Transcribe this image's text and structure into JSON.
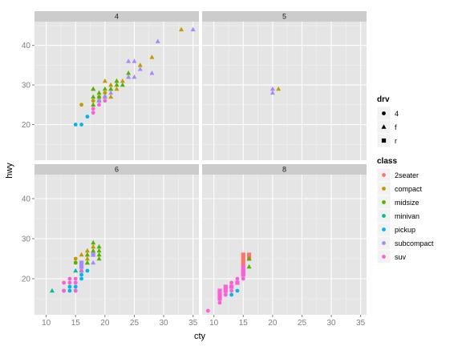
{
  "chart_data": {
    "type": "scatter",
    "title": "",
    "xlabel": "cty",
    "ylabel": "hwy",
    "xlim": [
      8,
      36
    ],
    "ylim": [
      11,
      46
    ],
    "x_ticks": [
      10,
      15,
      20,
      25,
      30,
      35
    ],
    "y_ticks": [
      20,
      30,
      40
    ],
    "grid": true,
    "facets": [
      "4",
      "5",
      "6",
      "8"
    ],
    "facet_layout": "2x2",
    "legend": {
      "placement": "right",
      "shape": {
        "title": "drv",
        "items": [
          {
            "label": "4",
            "symbol": "circle"
          },
          {
            "label": "f",
            "symbol": "triangle"
          },
          {
            "label": "r",
            "symbol": "square"
          }
        ]
      },
      "color": {
        "title": "class",
        "items": [
          {
            "label": "2seater",
            "color": "#F8766D"
          },
          {
            "label": "compact",
            "color": "#C49A00"
          },
          {
            "label": "midsize",
            "color": "#53B400"
          },
          {
            "label": "minivan",
            "color": "#00C094"
          },
          {
            "label": "pickup",
            "color": "#00B6EB"
          },
          {
            "label": "subcompact",
            "color": "#A58AFF"
          },
          {
            "label": "suv",
            "color": "#FB61D7"
          }
        ]
      }
    },
    "points": [
      {
        "facet": "4",
        "x": 18,
        "y": 29,
        "class": "compact",
        "drv": "f"
      },
      {
        "facet": "4",
        "x": 21,
        "y": 29,
        "class": "compact",
        "drv": "f"
      },
      {
        "facet": "4",
        "x": 20,
        "y": 31,
        "class": "compact",
        "drv": "f"
      },
      {
        "facet": "4",
        "x": 21,
        "y": 30,
        "class": "compact",
        "drv": "f"
      },
      {
        "facet": "4",
        "x": 18,
        "y": 26,
        "class": "compact",
        "drv": "4"
      },
      {
        "facet": "4",
        "x": 16,
        "y": 25,
        "class": "compact",
        "drv": "4"
      },
      {
        "facet": "4",
        "x": 20,
        "y": 28,
        "class": "compact",
        "drv": "4"
      },
      {
        "facet": "4",
        "x": 19,
        "y": 27,
        "class": "compact",
        "drv": "4"
      },
      {
        "facet": "4",
        "x": 21,
        "y": 27,
        "class": "compact",
        "drv": "f"
      },
      {
        "facet": "4",
        "x": 22,
        "y": 29,
        "class": "compact",
        "drv": "f"
      },
      {
        "facet": "4",
        "x": 23,
        "y": 31,
        "class": "compact",
        "drv": "f"
      },
      {
        "facet": "4",
        "x": 24,
        "y": 32,
        "class": "compact",
        "drv": "f"
      },
      {
        "facet": "4",
        "x": 26,
        "y": 35,
        "class": "compact",
        "drv": "f"
      },
      {
        "facet": "4",
        "x": 28,
        "y": 37,
        "class": "compact",
        "drv": "f"
      },
      {
        "facet": "4",
        "x": 33,
        "y": 44,
        "class": "compact",
        "drv": "f"
      },
      {
        "facet": "4",
        "x": 19,
        "y": 26,
        "class": "compact",
        "drv": "4"
      },
      {
        "facet": "4",
        "x": 22,
        "y": 31,
        "class": "compact",
        "drv": "f"
      },
      {
        "facet": "4",
        "x": 18,
        "y": 27,
        "class": "midsize",
        "drv": "f"
      },
      {
        "facet": "4",
        "x": 19,
        "y": 27,
        "class": "midsize",
        "drv": "f"
      },
      {
        "facet": "4",
        "x": 19,
        "y": 26,
        "class": "midsize",
        "drv": "f"
      },
      {
        "facet": "4",
        "x": 20,
        "y": 29,
        "class": "midsize",
        "drv": "f"
      },
      {
        "facet": "4",
        "x": 21,
        "y": 29,
        "class": "midsize",
        "drv": "f"
      },
      {
        "facet": "4",
        "x": 22,
        "y": 31,
        "class": "midsize",
        "drv": "f"
      },
      {
        "facet": "4",
        "x": 23,
        "y": 30,
        "class": "midsize",
        "drv": "f"
      },
      {
        "facet": "4",
        "x": 18,
        "y": 29,
        "class": "midsize",
        "drv": "f"
      },
      {
        "facet": "4",
        "x": 19,
        "y": 28,
        "class": "midsize",
        "drv": "f"
      },
      {
        "facet": "4",
        "x": 24,
        "y": 33,
        "class": "midsize",
        "drv": "f"
      },
      {
        "facet": "4",
        "x": 20,
        "y": 27,
        "class": "midsize",
        "drv": "f"
      },
      {
        "facet": "4",
        "x": 18,
        "y": 25,
        "class": "midsize",
        "drv": "f"
      },
      {
        "facet": "4",
        "x": 22,
        "y": 30,
        "class": "midsize",
        "drv": "f"
      },
      {
        "facet": "4",
        "x": 15,
        "y": 20,
        "class": "pickup",
        "drv": "4"
      },
      {
        "facet": "4",
        "x": 16,
        "y": 20,
        "class": "pickup",
        "drv": "4"
      },
      {
        "facet": "4",
        "x": 17,
        "y": 22,
        "class": "pickup",
        "drv": "4"
      },
      {
        "facet": "4",
        "x": 18,
        "y": 24,
        "class": "suv",
        "drv": "4"
      },
      {
        "facet": "4",
        "x": 18,
        "y": 23,
        "class": "suv",
        "drv": "4"
      },
      {
        "facet": "4",
        "x": 19,
        "y": 25,
        "class": "suv",
        "drv": "4"
      },
      {
        "facet": "4",
        "x": 20,
        "y": 26,
        "class": "suv",
        "drv": "4"
      },
      {
        "facet": "4",
        "x": 25,
        "y": 36,
        "class": "subcompact",
        "drv": "f"
      },
      {
        "facet": "4",
        "x": 24,
        "y": 36,
        "class": "subcompact",
        "drv": "f"
      },
      {
        "facet": "4",
        "x": 29,
        "y": 41,
        "class": "subcompact",
        "drv": "f"
      },
      {
        "facet": "4",
        "x": 35,
        "y": 44,
        "class": "subcompact",
        "drv": "f"
      },
      {
        "facet": "4",
        "x": 26,
        "y": 34,
        "class": "subcompact",
        "drv": "f"
      },
      {
        "facet": "4",
        "x": 28,
        "y": 33,
        "class": "subcompact",
        "drv": "f"
      },
      {
        "facet": "4",
        "x": 25,
        "y": 32,
        "class": "subcompact",
        "drv": "f"
      },
      {
        "facet": "4",
        "x": 24,
        "y": 32,
        "class": "subcompact",
        "drv": "f"
      },
      {
        "facet": "4",
        "x": 21,
        "y": 28,
        "class": "subcompact",
        "drv": "f"
      },
      {
        "facet": "4",
        "x": 19,
        "y": 26,
        "class": "subcompact",
        "drv": "4"
      },
      {
        "facet": "4",
        "x": 20,
        "y": 27,
        "class": "subcompact",
        "drv": "4"
      },
      {
        "facet": "5",
        "x": 21,
        "y": 29,
        "class": "compact",
        "drv": "f"
      },
      {
        "facet": "5",
        "x": 20,
        "y": 28,
        "class": "subcompact",
        "drv": "f"
      },
      {
        "facet": "5",
        "x": 20,
        "y": 29,
        "class": "subcompact",
        "drv": "f"
      },
      {
        "facet": "6",
        "x": 11,
        "y": 17,
        "class": "minivan",
        "drv": "f"
      },
      {
        "facet": "6",
        "x": 15,
        "y": 22,
        "class": "minivan",
        "drv": "f"
      },
      {
        "facet": "6",
        "x": 16,
        "y": 23,
        "class": "minivan",
        "drv": "f"
      },
      {
        "facet": "6",
        "x": 16,
        "y": 22,
        "class": "minivan",
        "drv": "f"
      },
      {
        "facet": "6",
        "x": 17,
        "y": 24,
        "class": "minivan",
        "drv": "f"
      },
      {
        "facet": "6",
        "x": 15,
        "y": 25,
        "class": "compact",
        "drv": "4"
      },
      {
        "facet": "6",
        "x": 15,
        "y": 24,
        "class": "compact",
        "drv": "4"
      },
      {
        "facet": "6",
        "x": 17,
        "y": 26,
        "class": "compact",
        "drv": "f"
      },
      {
        "facet": "6",
        "x": 16,
        "y": 26,
        "class": "compact",
        "drv": "f"
      },
      {
        "facet": "6",
        "x": 17,
        "y": 25,
        "class": "compact",
        "drv": "f"
      },
      {
        "facet": "6",
        "x": 17,
        "y": 27,
        "class": "compact",
        "drv": "f"
      },
      {
        "facet": "6",
        "x": 18,
        "y": 28,
        "class": "compact",
        "drv": "f"
      },
      {
        "facet": "6",
        "x": 18,
        "y": 26,
        "class": "midsize",
        "drv": "f"
      },
      {
        "facet": "6",
        "x": 18,
        "y": 29,
        "class": "midsize",
        "drv": "f"
      },
      {
        "facet": "6",
        "x": 19,
        "y": 28,
        "class": "midsize",
        "drv": "f"
      },
      {
        "facet": "6",
        "x": 19,
        "y": 27,
        "class": "midsize",
        "drv": "f"
      },
      {
        "facet": "6",
        "x": 19,
        "y": 26,
        "class": "midsize",
        "drv": "f"
      },
      {
        "facet": "6",
        "x": 17,
        "y": 26,
        "class": "midsize",
        "drv": "f"
      },
      {
        "facet": "6",
        "x": 18,
        "y": 27,
        "class": "midsize",
        "drv": "f"
      },
      {
        "facet": "6",
        "x": 19,
        "y": 25,
        "class": "midsize",
        "drv": "f"
      },
      {
        "facet": "6",
        "x": 15,
        "y": 24,
        "class": "midsize",
        "drv": "4"
      },
      {
        "facet": "6",
        "x": 17,
        "y": 24,
        "class": "midsize",
        "drv": "f"
      },
      {
        "facet": "6",
        "x": 13,
        "y": 17,
        "class": "pickup",
        "drv": "4"
      },
      {
        "facet": "6",
        "x": 14,
        "y": 17,
        "class": "pickup",
        "drv": "4"
      },
      {
        "facet": "6",
        "x": 14,
        "y": 18,
        "class": "pickup",
        "drv": "4"
      },
      {
        "facet": "6",
        "x": 15,
        "y": 17,
        "class": "pickup",
        "drv": "4"
      },
      {
        "facet": "6",
        "x": 15,
        "y": 18,
        "class": "pickup",
        "drv": "4"
      },
      {
        "facet": "6",
        "x": 15,
        "y": 19,
        "class": "pickup",
        "drv": "4"
      },
      {
        "facet": "6",
        "x": 16,
        "y": 20,
        "class": "pickup",
        "drv": "4"
      },
      {
        "facet": "6",
        "x": 16,
        "y": 21,
        "class": "pickup",
        "drv": "4"
      },
      {
        "facet": "6",
        "x": 17,
        "y": 22,
        "class": "pickup",
        "drv": "4"
      },
      {
        "facet": "6",
        "x": 13,
        "y": 19,
        "class": "suv",
        "drv": "4"
      },
      {
        "facet": "6",
        "x": 13,
        "y": 17,
        "class": "suv",
        "drv": "4"
      },
      {
        "facet": "6",
        "x": 14,
        "y": 20,
        "class": "suv",
        "drv": "4"
      },
      {
        "facet": "6",
        "x": 14,
        "y": 19,
        "class": "suv",
        "drv": "4"
      },
      {
        "facet": "6",
        "x": 15,
        "y": 19,
        "class": "suv",
        "drv": "4"
      },
      {
        "facet": "6",
        "x": 15,
        "y": 20,
        "class": "suv",
        "drv": "4"
      },
      {
        "facet": "6",
        "x": 15,
        "y": 17,
        "class": "suv",
        "drv": "4"
      },
      {
        "facet": "6",
        "x": 16,
        "y": 22,
        "class": "suv",
        "drv": "4"
      },
      {
        "facet": "6",
        "x": 16,
        "y": 24,
        "class": "subcompact",
        "drv": "r"
      },
      {
        "facet": "6",
        "x": 16,
        "y": 23,
        "class": "subcompact",
        "drv": "r"
      },
      {
        "facet": "6",
        "x": 18,
        "y": 26,
        "class": "subcompact",
        "drv": "r"
      },
      {
        "facet": "6",
        "x": 18,
        "y": 24,
        "class": "subcompact",
        "drv": "f"
      },
      {
        "facet": "8",
        "x": 15,
        "y": 26,
        "class": "2seater",
        "drv": "r"
      },
      {
        "facet": "8",
        "x": 16,
        "y": 26,
        "class": "2seater",
        "drv": "r"
      },
      {
        "facet": "8",
        "x": 15,
        "y": 25,
        "class": "2seater",
        "drv": "r"
      },
      {
        "facet": "8",
        "x": 15,
        "y": 24,
        "class": "2seater",
        "drv": "r"
      },
      {
        "facet": "8",
        "x": 16,
        "y": 25,
        "class": "2seater",
        "drv": "r"
      },
      {
        "facet": "8",
        "x": 16,
        "y": 23,
        "class": "midsize",
        "drv": "f"
      },
      {
        "facet": "8",
        "x": 16,
        "y": 25,
        "class": "midsize",
        "drv": "f"
      },
      {
        "facet": "8",
        "x": 12,
        "y": 16,
        "class": "pickup",
        "drv": "4"
      },
      {
        "facet": "8",
        "x": 13,
        "y": 16,
        "class": "pickup",
        "drv": "4"
      },
      {
        "facet": "8",
        "x": 14,
        "y": 17,
        "class": "pickup",
        "drv": "4"
      },
      {
        "facet": "8",
        "x": 11,
        "y": 15,
        "class": "pickup",
        "drv": "4"
      },
      {
        "facet": "8",
        "x": 15,
        "y": 21,
        "class": "subcompact",
        "drv": "r"
      },
      {
        "facet": "8",
        "x": 15,
        "y": 22,
        "class": "subcompact",
        "drv": "r"
      },
      {
        "facet": "8",
        "x": 9,
        "y": 12,
        "class": "suv",
        "drv": "4"
      },
      {
        "facet": "8",
        "x": 11,
        "y": 14,
        "class": "suv",
        "drv": "4"
      },
      {
        "facet": "8",
        "x": 11,
        "y": 15,
        "class": "suv",
        "drv": "4"
      },
      {
        "facet": "8",
        "x": 11,
        "y": 16,
        "class": "suv",
        "drv": "4"
      },
      {
        "facet": "8",
        "x": 11,
        "y": 17,
        "class": "suv",
        "drv": "4"
      },
      {
        "facet": "8",
        "x": 12,
        "y": 16,
        "class": "suv",
        "drv": "4"
      },
      {
        "facet": "8",
        "x": 12,
        "y": 17,
        "class": "suv",
        "drv": "4"
      },
      {
        "facet": "8",
        "x": 12,
        "y": 18,
        "class": "suv",
        "drv": "4"
      },
      {
        "facet": "8",
        "x": 13,
        "y": 17,
        "class": "suv",
        "drv": "4"
      },
      {
        "facet": "8",
        "x": 13,
        "y": 18,
        "class": "suv",
        "drv": "4"
      },
      {
        "facet": "8",
        "x": 13,
        "y": 19,
        "class": "suv",
        "drv": "4"
      },
      {
        "facet": "8",
        "x": 14,
        "y": 19,
        "class": "suv",
        "drv": "4"
      },
      {
        "facet": "8",
        "x": 14,
        "y": 20,
        "class": "suv",
        "drv": "4"
      },
      {
        "facet": "8",
        "x": 15,
        "y": 20,
        "class": "suv",
        "drv": "4"
      },
      {
        "facet": "8",
        "x": 11,
        "y": 15,
        "class": "suv",
        "drv": "r"
      },
      {
        "facet": "8",
        "x": 11,
        "y": 16,
        "class": "suv",
        "drv": "r"
      },
      {
        "facet": "8",
        "x": 11,
        "y": 17,
        "class": "suv",
        "drv": "r"
      },
      {
        "facet": "8",
        "x": 12,
        "y": 17,
        "class": "suv",
        "drv": "r"
      },
      {
        "facet": "8",
        "x": 12,
        "y": 18,
        "class": "suv",
        "drv": "r"
      },
      {
        "facet": "8",
        "x": 13,
        "y": 18,
        "class": "suv",
        "drv": "r"
      },
      {
        "facet": "8",
        "x": 14,
        "y": 19,
        "class": "suv",
        "drv": "r"
      },
      {
        "facet": "8",
        "x": 15,
        "y": 21,
        "class": "suv",
        "drv": "r"
      },
      {
        "facet": "8",
        "x": 15,
        "y": 22,
        "class": "suv",
        "drv": "r"
      },
      {
        "facet": "8",
        "x": 15,
        "y": 23,
        "class": "suv",
        "drv": "r"
      }
    ]
  }
}
